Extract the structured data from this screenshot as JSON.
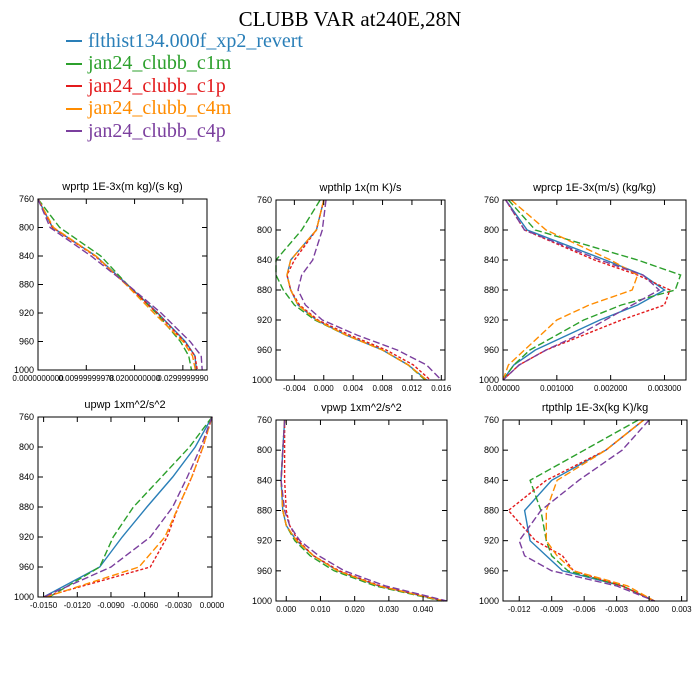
{
  "title": "CLUBB VAR at240E,28N",
  "legend": [
    {
      "label": "flthist134.000f_xp2_revert",
      "color": "#2a7fb8",
      "dash": "none"
    },
    {
      "label": "jan24_clubb_c1m",
      "color": "#2ca02c",
      "dash": "7,3"
    },
    {
      "label": "jan24_clubb_c1p",
      "color": "#e31a1c",
      "dash": "3,2"
    },
    {
      "label": "jan24_clubb_c4m",
      "color": "#ff8c00",
      "dash": "7,3"
    },
    {
      "label": "jan24_clubb_c4p",
      "color": "#7b3f9e",
      "dash": "7,3"
    }
  ],
  "chart_data": [
    {
      "type": "line",
      "title": "wprtp 1E-3x(m kg)/(s kg)",
      "xlim": [
        0,
        0.035
      ],
      "ylim": [
        760,
        1000
      ],
      "y_reversed": true,
      "xticks": [
        0,
        0.01,
        0.02,
        0.03
      ],
      "xtick_labels": [
        "0.0000000000",
        "0.00999999978",
        "0.0200000000",
        "0.0299999990"
      ],
      "yticks": [
        760,
        800,
        840,
        880,
        920,
        960,
        1000
      ],
      "y": [
        760,
        800,
        840,
        880,
        920,
        960,
        980,
        1000
      ],
      "series": [
        {
          "values": [
            0.0,
            0.003,
            0.012,
            0.0185,
            0.0248,
            0.0305,
            0.0325,
            0.0328
          ]
        },
        {
          "values": [
            0.0,
            0.0045,
            0.013,
            0.0185,
            0.0245,
            0.0295,
            0.0312,
            0.0318
          ]
        },
        {
          "values": [
            0.0,
            0.003,
            0.0118,
            0.0183,
            0.0247,
            0.0303,
            0.0325,
            0.033
          ]
        },
        {
          "values": [
            0.0,
            0.0032,
            0.012,
            0.0182,
            0.024,
            0.03,
            0.032,
            0.0326
          ]
        },
        {
          "values": [
            0.0,
            0.0025,
            0.011,
            0.0185,
            0.0255,
            0.0315,
            0.0338,
            0.034
          ]
        }
      ]
    },
    {
      "type": "line",
      "title": "wpthlp 1x(m K)/s",
      "xlim": [
        -0.0065,
        0.0165
      ],
      "ylim": [
        760,
        1000
      ],
      "y_reversed": true,
      "xticks": [
        -0.004,
        0,
        0.004,
        0.008,
        0.012,
        0.016
      ],
      "xtick_labels": [
        "-0.004",
        "0.000",
        "0.004",
        "0.008",
        "0.012",
        "0.016"
      ],
      "yticks": [
        760,
        800,
        840,
        880,
        920,
        960,
        1000
      ],
      "y": [
        760,
        800,
        840,
        860,
        880,
        900,
        920,
        940,
        960,
        980,
        1000
      ],
      "series": [
        {
          "values": [
            0.0,
            -0.001,
            -0.0045,
            -0.005,
            -0.0045,
            -0.0035,
            -0.001,
            0.003,
            0.008,
            0.0115,
            0.014
          ]
        },
        {
          "values": [
            -0.0005,
            -0.003,
            -0.0065,
            -0.0065,
            -0.0055,
            -0.004,
            -0.0012,
            0.003,
            0.008,
            0.0115,
            0.0138
          ]
        },
        {
          "values": [
            0.0,
            -0.001,
            -0.004,
            -0.005,
            -0.0045,
            -0.0033,
            -0.0008,
            0.0035,
            0.0085,
            0.0122,
            0.0145
          ]
        },
        {
          "values": [
            0.0,
            -0.001,
            -0.0045,
            -0.005,
            -0.0045,
            -0.0035,
            -0.001,
            0.003,
            0.008,
            0.0115,
            0.014
          ]
        },
        {
          "values": [
            0.0003,
            -0.0002,
            -0.0015,
            -0.003,
            -0.0035,
            -0.0025,
            -0.0002,
            0.0045,
            0.01,
            0.014,
            0.016
          ]
        }
      ]
    },
    {
      "type": "line",
      "title": "wprcp 1E-3x(m/s) (kg/kg)",
      "xlim": [
        0,
        0.0034
      ],
      "ylim": [
        760,
        1000
      ],
      "y_reversed": true,
      "xticks": [
        0,
        0.001,
        0.002,
        0.003
      ],
      "xtick_labels": [
        "0.000000",
        "0.001000",
        "0.002000",
        "0.003000"
      ],
      "yticks": [
        760,
        800,
        840,
        880,
        920,
        960,
        1000
      ],
      "y": [
        760,
        800,
        840,
        860,
        880,
        900,
        920,
        940,
        960,
        980,
        1000
      ],
      "series": [
        {
          "values": [
            5e-05,
            0.00045,
            0.0019,
            0.0026,
            0.003,
            0.0025,
            0.0018,
            0.0012,
            0.0006,
            0.0002,
            0.0
          ]
        },
        {
          "values": [
            0.0001,
            0.0006,
            0.0025,
            0.0033,
            0.0032,
            0.0022,
            0.0015,
            0.001,
            0.0005,
            0.0002,
            0.0
          ]
        },
        {
          "values": [
            5e-05,
            0.0004,
            0.0017,
            0.0025,
            0.0031,
            0.003,
            0.0022,
            0.0015,
            0.0008,
            0.0003,
            0.0
          ]
        },
        {
          "values": [
            0.00015,
            0.0008,
            0.002,
            0.0025,
            0.0024,
            0.0016,
            0.001,
            0.0007,
            0.0004,
            0.0001,
            0.0
          ]
        },
        {
          "values": [
            5e-05,
            0.0004,
            0.0018,
            0.0026,
            0.0029,
            0.0024,
            0.0019,
            0.0014,
            0.0008,
            0.0003,
            0.0
          ]
        }
      ]
    },
    {
      "type": "line",
      "title": "upwp 1xm^2/s^2",
      "xlim": [
        -0.0155,
        0.0
      ],
      "ylim": [
        760,
        1000
      ],
      "y_reversed": true,
      "xticks": [
        -0.015,
        -0.012,
        -0.009,
        -0.006,
        -0.003,
        0
      ],
      "xtick_labels": [
        "-0.0150",
        "-0.0120",
        "-0.0090",
        "-0.0060",
        "-0.0030",
        "0.0000"
      ],
      "yticks": [
        760,
        800,
        840,
        880,
        920,
        960,
        1000
      ],
      "y": [
        760,
        800,
        840,
        880,
        920,
        960,
        1000
      ],
      "series": [
        {
          "values": [
            0.0,
            -0.0015,
            -0.0035,
            -0.0058,
            -0.008,
            -0.01,
            -0.015
          ]
        },
        {
          "values": [
            0.0,
            -0.002,
            -0.0045,
            -0.007,
            -0.0088,
            -0.01,
            -0.0145
          ]
        },
        {
          "values": [
            0.0,
            -0.0008,
            -0.0018,
            -0.003,
            -0.004,
            -0.0055,
            -0.015
          ]
        },
        {
          "values": [
            0.0,
            -0.0008,
            -0.0018,
            -0.003,
            -0.0042,
            -0.0065,
            -0.0148
          ]
        },
        {
          "values": [
            0.0,
            -0.001,
            -0.0022,
            -0.0035,
            -0.0055,
            -0.009,
            -0.015
          ]
        }
      ]
    },
    {
      "type": "line",
      "title": "vpwp 1xm^2/s^2",
      "xlim": [
        -0.003,
        0.047
      ],
      "ylim": [
        760,
        1000
      ],
      "y_reversed": true,
      "xticks": [
        0,
        0.01,
        0.02,
        0.03,
        0.04
      ],
      "xtick_labels": [
        "0.000",
        "0.010",
        "0.020",
        "0.030",
        "0.040"
      ],
      "yticks": [
        760,
        800,
        840,
        880,
        920,
        960,
        1000
      ],
      "y": [
        760,
        800,
        840,
        880,
        900,
        920,
        940,
        960,
        980,
        1000
      ],
      "series": [
        {
          "values": [
            -0.0005,
            -0.001,
            -0.0015,
            -0.001,
            0.0,
            0.003,
            0.008,
            0.015,
            0.027,
            0.046
          ]
        },
        {
          "values": [
            -0.0005,
            -0.001,
            -0.0015,
            -0.001,
            0.0,
            0.0025,
            0.007,
            0.014,
            0.026,
            0.0455
          ]
        },
        {
          "values": [
            -0.0005,
            -0.0005,
            -0.0005,
            0.0,
            0.001,
            0.0035,
            0.008,
            0.0155,
            0.0275,
            0.0465
          ]
        },
        {
          "values": [
            -0.0005,
            -0.001,
            -0.0015,
            -0.001,
            0.0,
            0.003,
            0.008,
            0.015,
            0.027,
            0.046
          ]
        },
        {
          "values": [
            -0.0005,
            -0.001,
            -0.0015,
            -0.0005,
            0.001,
            0.004,
            0.0095,
            0.017,
            0.029,
            0.047
          ]
        }
      ]
    },
    {
      "type": "line",
      "title": "rtpthlp 1E-3x(kg K)/kg",
      "xlim": [
        -0.0135,
        0.0035
      ],
      "ylim": [
        760,
        1000
      ],
      "y_reversed": true,
      "xticks": [
        -0.012,
        -0.009,
        -0.006,
        -0.003,
        0,
        0.003
      ],
      "xtick_labels": [
        "-0.012",
        "-0.009",
        "-0.006",
        "-0.003",
        "0.000",
        "0.003"
      ],
      "yticks": [
        760,
        800,
        840,
        880,
        920,
        960,
        1000
      ],
      "y": [
        760,
        800,
        840,
        880,
        920,
        940,
        960,
        980,
        1000
      ],
      "series": [
        {
          "values": [
            -0.0005,
            -0.004,
            -0.009,
            -0.0115,
            -0.011,
            -0.0095,
            -0.008,
            -0.0025,
            0.0005
          ]
        },
        {
          "values": [
            -0.001,
            -0.006,
            -0.011,
            -0.01,
            -0.0095,
            -0.009,
            -0.0075,
            -0.0025,
            0.0005
          ]
        },
        {
          "values": [
            -0.0005,
            -0.004,
            -0.0095,
            -0.013,
            -0.0105,
            -0.008,
            -0.007,
            -0.0025,
            0.0005
          ]
        },
        {
          "values": [
            -0.0005,
            -0.004,
            -0.0085,
            -0.0095,
            -0.0095,
            -0.0085,
            -0.007,
            -0.002,
            0.0005
          ]
        },
        {
          "values": [
            0.0,
            -0.0025,
            -0.0065,
            -0.01,
            -0.012,
            -0.0115,
            -0.009,
            -0.003,
            0.0005
          ]
        }
      ]
    }
  ]
}
